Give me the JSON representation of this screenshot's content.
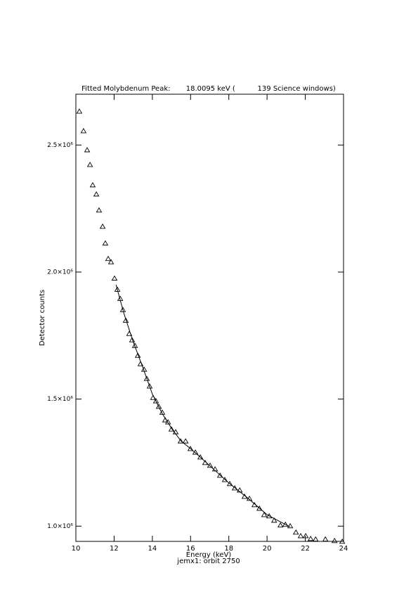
{
  "chart_data": {
    "type": "scatter",
    "title": "Fitted Molybdenum Peak:       18.0095 keV (          139 Science windows)",
    "x_label": "Energy (keV)",
    "subtitle": "jemx1: orbit 2750",
    "y_label": "Detector counts",
    "xlim": [
      10,
      24
    ],
    "xticks": [
      10,
      12,
      14,
      16,
      18,
      20,
      22,
      24
    ],
    "ylim": [
      940000,
      2700000
    ],
    "yticks": [
      {
        "value": 1000000,
        "label": "1.0×10⁶"
      },
      {
        "value": 1500000,
        "label": "1.5×10⁶"
      },
      {
        "value": 2000000,
        "label": "2.0×10⁶"
      },
      {
        "value": 2500000,
        "label": "2.5×10⁶"
      }
    ],
    "color": "#000000",
    "series": [
      {
        "marker": "triangle",
        "x": [
          10.18,
          10.4,
          10.59,
          10.74,
          10.88,
          11.07,
          11.21,
          11.4,
          11.54,
          11.69,
          11.84,
          12.02,
          12.17,
          12.32,
          12.46,
          12.61,
          12.79,
          12.94,
          13.09,
          13.24,
          13.38,
          13.57,
          13.71,
          13.86,
          14.04,
          14.19,
          14.34,
          14.52,
          14.67,
          14.82,
          15.0,
          15.22,
          15.48,
          15.74,
          15.99,
          16.25,
          16.51,
          16.76,
          17.02,
          17.28,
          17.54,
          17.79,
          18.05,
          18.31,
          18.57,
          18.82,
          19.08,
          19.34,
          19.6,
          19.85,
          20.11,
          20.37,
          20.7,
          20.96,
          21.21,
          21.51,
          21.76,
          22.02,
          22.28,
          22.54,
          23.05,
          23.53,
          23.93
        ],
        "values": [
          2632000,
          2555000,
          2480000,
          2422000,
          2342000,
          2306000,
          2243000,
          2179000,
          2113000,
          2052000,
          2039000,
          1975000,
          1931000,
          1895000,
          1851000,
          1809000,
          1757000,
          1732000,
          1710000,
          1671000,
          1638000,
          1616000,
          1580000,
          1550000,
          1505000,
          1492000,
          1470000,
          1447000,
          1417000,
          1409000,
          1381000,
          1370000,
          1334000,
          1334000,
          1304000,
          1290000,
          1271000,
          1249000,
          1238000,
          1224000,
          1199000,
          1182000,
          1166000,
          1149000,
          1141000,
          1116000,
          1108000,
          1083000,
          1069000,
          1044000,
          1039000,
          1022000,
          1003000,
          1006000,
          1000000,
          975000,
          961000,
          961000,
          950000,
          948000,
          948000,
          942000,
          939000
        ]
      },
      {
        "marker": "line",
        "x": [
          12.1,
          12.5,
          13,
          13.5,
          14,
          14.5,
          15,
          15.5,
          16,
          16.5,
          17,
          18,
          19,
          20,
          21.2
        ],
        "values": [
          1950000,
          1840000,
          1725000,
          1625000,
          1520000,
          1445000,
          1385000,
          1335000,
          1305000,
          1272000,
          1238000,
          1170000,
          1110000,
          1045000,
          997000
        ]
      }
    ]
  }
}
